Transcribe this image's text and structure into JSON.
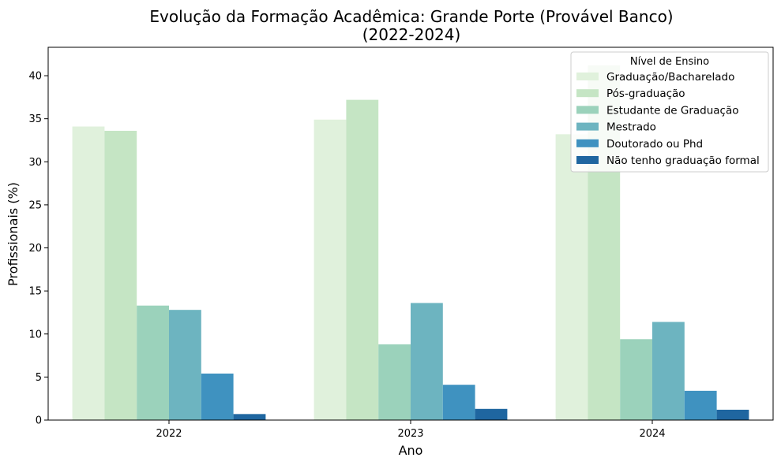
{
  "chart_data": {
    "type": "bar",
    "title_line1": "Evolução da Formação Acadêmica: Grande Porte (Provável Banco)",
    "title_line2": "(2022-2024)",
    "xlabel": "Ano",
    "ylabel": "Profissionais (%)",
    "categories": [
      "2022",
      "2023",
      "2024"
    ],
    "ylim": [
      0,
      43.3
    ],
    "yticks": [
      0,
      5,
      10,
      15,
      20,
      25,
      30,
      35,
      40
    ],
    "grid": false,
    "legend": {
      "title": "Nível de Ensino",
      "placement": "top-right"
    },
    "series": [
      {
        "name": "Graduação/Bacharelado",
        "color": "#e0f1dc",
        "values": [
          34.1,
          34.9,
          33.2
        ]
      },
      {
        "name": "Pós-graduação",
        "color": "#c5e5c4",
        "values": [
          33.6,
          37.2,
          41.2
        ]
      },
      {
        "name": "Estudante de Graduação",
        "color": "#9bd2bb",
        "values": [
          13.3,
          8.8,
          9.4
        ]
      },
      {
        "name": "Mestrado",
        "color": "#6db4c0",
        "values": [
          12.8,
          13.6,
          11.4
        ]
      },
      {
        "name": "Doutorado ou Phd",
        "color": "#3f92c0",
        "values": [
          5.4,
          4.1,
          3.4
        ]
      },
      {
        "name": "Não tenho graduação formal",
        "color": "#1f66a0",
        "values": [
          0.7,
          1.3,
          1.2
        ]
      }
    ]
  }
}
